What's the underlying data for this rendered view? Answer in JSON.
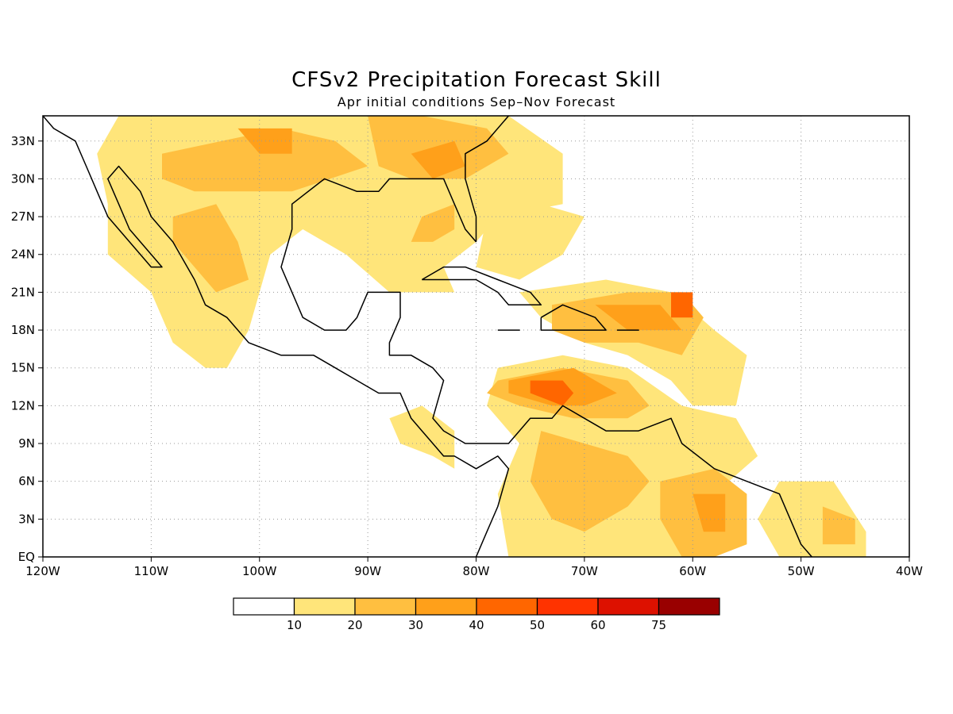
{
  "title": "CFSv2 Precipitation Forecast Skill",
  "subtitle": "Apr initial conditions  Sep–Nov Forecast",
  "map": {
    "lon_range": [
      -120,
      -40
    ],
    "lat_range": [
      0,
      35
    ],
    "lon_ticks": [
      {
        "value": -120,
        "label": "120W"
      },
      {
        "value": -110,
        "label": "110W"
      },
      {
        "value": -100,
        "label": "100W"
      },
      {
        "value": -90,
        "label": "90W"
      },
      {
        "value": -80,
        "label": "80W"
      },
      {
        "value": -70,
        "label": "70W"
      },
      {
        "value": -60,
        "label": "60W"
      },
      {
        "value": -50,
        "label": "50W"
      },
      {
        "value": -40,
        "label": "40W"
      }
    ],
    "lat_ticks": [
      {
        "value": 0,
        "label": "EQ"
      },
      {
        "value": 3,
        "label": "3N"
      },
      {
        "value": 6,
        "label": "6N"
      },
      {
        "value": 9,
        "label": "9N"
      },
      {
        "value": 12,
        "label": "12N"
      },
      {
        "value": 15,
        "label": "15N"
      },
      {
        "value": 18,
        "label": "18N"
      },
      {
        "value": 21,
        "label": "21N"
      },
      {
        "value": 24,
        "label": "24N"
      },
      {
        "value": 27,
        "label": "27N"
      },
      {
        "value": 30,
        "label": "30N"
      },
      {
        "value": 33,
        "label": "33N"
      }
    ],
    "grid": "dotted"
  },
  "legend": {
    "colors": [
      "#ffffff",
      "#ffe57a",
      "#ffbf40",
      "#ffa01a",
      "#ff6600",
      "#ff3300",
      "#dd1100",
      "#990000"
    ],
    "labels": [
      "10",
      "20",
      "30",
      "40",
      "50",
      "60",
      "75"
    ]
  },
  "skill_regions": [
    {
      "level": 1,
      "polygon": [
        [
          -113,
          35
        ],
        [
          -77,
          35
        ],
        [
          -72,
          32
        ],
        [
          -72,
          28
        ],
        [
          -78,
          27
        ],
        [
          -80,
          25
        ],
        [
          -83,
          23
        ],
        [
          -82,
          21
        ],
        [
          -88,
          21
        ],
        [
          -92,
          24
        ],
        [
          -96,
          26
        ],
        [
          -99,
          24
        ],
        [
          -100,
          21
        ],
        [
          -101,
          18
        ],
        [
          -103,
          15
        ],
        [
          -105,
          15
        ],
        [
          -108,
          17
        ],
        [
          -110,
          21
        ],
        [
          -114,
          24
        ],
        [
          -114,
          28
        ],
        [
          -115,
          32
        ]
      ]
    },
    {
      "level": 1,
      "polygon": [
        [
          -79,
          27
        ],
        [
          -74,
          28
        ],
        [
          -70,
          27
        ],
        [
          -72,
          24
        ],
        [
          -76,
          22
        ],
        [
          -80,
          23
        ]
      ]
    },
    {
      "level": 1,
      "polygon": [
        [
          -76,
          21
        ],
        [
          -68,
          22
        ],
        [
          -62,
          21
        ],
        [
          -58,
          18
        ],
        [
          -55,
          16
        ],
        [
          -56,
          12
        ],
        [
          -60,
          12
        ],
        [
          -62,
          14
        ],
        [
          -66,
          16
        ],
        [
          -70,
          17
        ],
        [
          -74,
          19
        ]
      ]
    },
    {
      "level": 1,
      "polygon": [
        [
          -78,
          15
        ],
        [
          -72,
          16
        ],
        [
          -66,
          15
        ],
        [
          -61,
          12
        ],
        [
          -56,
          11
        ],
        [
          -54,
          8
        ],
        [
          -58,
          5
        ],
        [
          -56,
          2
        ],
        [
          -58,
          0
        ],
        [
          -77,
          0
        ],
        [
          -78,
          5
        ],
        [
          -76,
          9
        ],
        [
          -79,
          12
        ]
      ]
    },
    {
      "level": 1,
      "polygon": [
        [
          -88,
          11
        ],
        [
          -85,
          12
        ],
        [
          -82,
          10
        ],
        [
          -82,
          7
        ],
        [
          -84,
          8
        ],
        [
          -87,
          9
        ]
      ]
    },
    {
      "level": 1,
      "polygon": [
        [
          -52,
          6
        ],
        [
          -47,
          6
        ],
        [
          -44,
          2
        ],
        [
          -44,
          0
        ],
        [
          -52,
          0
        ],
        [
          -54,
          3
        ]
      ]
    },
    {
      "level": 2,
      "polygon": [
        [
          -109,
          32
        ],
        [
          -98,
          34
        ],
        [
          -93,
          33
        ],
        [
          -90,
          31
        ],
        [
          -97,
          29
        ],
        [
          -102,
          29
        ],
        [
          -106,
          29
        ],
        [
          -109,
          30
        ]
      ]
    },
    {
      "level": 2,
      "polygon": [
        [
          -90,
          35
        ],
        [
          -85,
          35
        ],
        [
          -79,
          34
        ],
        [
          -77,
          32
        ],
        [
          -81,
          30
        ],
        [
          -86,
          30
        ],
        [
          -89,
          31
        ]
      ]
    },
    {
      "level": 2,
      "polygon": [
        [
          -108,
          27
        ],
        [
          -104,
          28
        ],
        [
          -102,
          25
        ],
        [
          -101,
          22
        ],
        [
          -104,
          21
        ],
        [
          -106,
          23
        ],
        [
          -108,
          25
        ]
      ]
    },
    {
      "level": 2,
      "polygon": [
        [
          -85,
          27
        ],
        [
          -82,
          28
        ],
        [
          -82,
          26
        ],
        [
          -84,
          25
        ],
        [
          -86,
          25
        ]
      ]
    },
    {
      "level": 2,
      "polygon": [
        [
          -73,
          20
        ],
        [
          -66,
          21
        ],
        [
          -61,
          21
        ],
        [
          -59,
          19
        ],
        [
          -61,
          16
        ],
        [
          -65,
          17
        ],
        [
          -70,
          17
        ],
        [
          -73,
          18
        ]
      ]
    },
    {
      "level": 2,
      "polygon": [
        [
          -78,
          14
        ],
        [
          -72,
          15
        ],
        [
          -66,
          14
        ],
        [
          -64,
          12
        ],
        [
          -66,
          11
        ],
        [
          -71,
          11
        ],
        [
          -76,
          12
        ],
        [
          -79,
          13
        ]
      ]
    },
    {
      "level": 2,
      "polygon": [
        [
          -74,
          10
        ],
        [
          -70,
          9
        ],
        [
          -66,
          8
        ],
        [
          -64,
          6
        ],
        [
          -66,
          4
        ],
        [
          -70,
          2
        ],
        [
          -73,
          3
        ],
        [
          -75,
          6
        ]
      ]
    },
    {
      "level": 2,
      "polygon": [
        [
          -63,
          6
        ],
        [
          -58,
          7
        ],
        [
          -55,
          5
        ],
        [
          -55,
          1
        ],
        [
          -58,
          0
        ],
        [
          -61,
          0
        ],
        [
          -63,
          3
        ]
      ]
    },
    {
      "level": 2,
      "polygon": [
        [
          -48,
          4
        ],
        [
          -45,
          3
        ],
        [
          -45,
          1
        ],
        [
          -48,
          1
        ]
      ]
    },
    {
      "level": 3,
      "polygon": [
        [
          -102,
          34
        ],
        [
          -97,
          34
        ],
        [
          -97,
          32
        ],
        [
          -100,
          32
        ]
      ]
    },
    {
      "level": 3,
      "polygon": [
        [
          -86,
          32
        ],
        [
          -82,
          33
        ],
        [
          -81,
          31
        ],
        [
          -84,
          30
        ]
      ]
    },
    {
      "level": 3,
      "polygon": [
        [
          -77,
          14
        ],
        [
          -71,
          15
        ],
        [
          -67,
          13
        ],
        [
          -70,
          12
        ],
        [
          -73,
          12
        ],
        [
          -77,
          13
        ]
      ]
    },
    {
      "level": 3,
      "polygon": [
        [
          -69,
          20
        ],
        [
          -63,
          20
        ],
        [
          -61,
          18
        ],
        [
          -66,
          18
        ]
      ]
    },
    {
      "level": 3,
      "polygon": [
        [
          -60,
          5
        ],
        [
          -57,
          5
        ],
        [
          -57,
          2
        ],
        [
          -59,
          2
        ]
      ]
    },
    {
      "level": 4,
      "polygon": [
        [
          -62,
          21
        ],
        [
          -60,
          21
        ],
        [
          -60,
          19
        ],
        [
          -62,
          19
        ]
      ]
    },
    {
      "level": 4,
      "polygon": [
        [
          -75,
          14
        ],
        [
          -72,
          14
        ],
        [
          -71,
          13
        ],
        [
          -72,
          12
        ],
        [
          -75,
          13
        ]
      ]
    }
  ],
  "coastlines": [
    {
      "name": "north-america-coast",
      "points": [
        [
          -120,
          35
        ],
        [
          -119,
          34
        ],
        [
          -117,
          33
        ],
        [
          -116,
          31
        ],
        [
          -115,
          29
        ],
        [
          -114,
          27
        ],
        [
          -112,
          25
        ],
        [
          -110,
          23
        ],
        [
          -109,
          23
        ],
        [
          -110,
          24
        ],
        [
          -112,
          26
        ],
        [
          -113,
          28
        ],
        [
          -114,
          30
        ],
        [
          -113,
          31
        ],
        [
          -111,
          29
        ],
        [
          -110,
          27
        ],
        [
          -108,
          25
        ],
        [
          -106,
          22
        ],
        [
          -105,
          20
        ],
        [
          -103,
          19
        ],
        [
          -101,
          17
        ],
        [
          -98,
          16
        ],
        [
          -95,
          16
        ],
        [
          -93,
          15
        ],
        [
          -91,
          14
        ],
        [
          -89,
          13
        ],
        [
          -87,
          13
        ],
        [
          -86,
          11
        ],
        [
          -85,
          10
        ],
        [
          -84,
          9
        ],
        [
          -83,
          8
        ],
        [
          -82,
          8
        ],
        [
          -80,
          7
        ],
        [
          -78,
          8
        ],
        [
          -77,
          7
        ],
        [
          -78,
          4
        ],
        [
          -79,
          2
        ],
        [
          -80,
          0
        ]
      ]
    },
    {
      "name": "gulf-coast",
      "points": [
        [
          -80,
          25
        ],
        [
          -81,
          26
        ],
        [
          -82,
          28
        ],
        [
          -83,
          30
        ],
        [
          -85,
          30
        ],
        [
          -88,
          30
        ],
        [
          -89,
          29
        ],
        [
          -91,
          29
        ],
        [
          -94,
          30
        ],
        [
          -97,
          28
        ],
        [
          -97,
          26
        ],
        [
          -98,
          23
        ],
        [
          -97,
          21
        ],
        [
          -96,
          19
        ],
        [
          -94,
          18
        ],
        [
          -92,
          18
        ],
        [
          -91,
          19
        ],
        [
          -90,
          21
        ],
        [
          -87,
          21
        ],
        [
          -87,
          19
        ],
        [
          -88,
          17
        ],
        [
          -88,
          16
        ],
        [
          -86,
          16
        ],
        [
          -84,
          15
        ],
        [
          -83,
          14
        ],
        [
          -84,
          11
        ],
        [
          -83,
          10
        ],
        [
          -81,
          9
        ],
        [
          -79,
          9
        ],
        [
          -77,
          9
        ],
        [
          -76,
          10
        ],
        [
          -75,
          11
        ],
        [
          -73,
          11
        ],
        [
          -72,
          12
        ],
        [
          -70,
          11
        ],
        [
          -68,
          10
        ],
        [
          -65,
          10
        ],
        [
          -62,
          11
        ],
        [
          -61,
          9
        ],
        [
          -58,
          7
        ],
        [
          -55,
          6
        ],
        [
          -52,
          5
        ],
        [
          -51,
          3
        ],
        [
          -50,
          1
        ],
        [
          -49,
          0
        ]
      ]
    },
    {
      "name": "atlantic-coast",
      "points": [
        [
          -80,
          25
        ],
        [
          -80,
          27
        ],
        [
          -81,
          30
        ],
        [
          -81,
          32
        ],
        [
          -79,
          33
        ],
        [
          -77,
          35
        ]
      ]
    },
    {
      "name": "cuba",
      "points": [
        [
          -85,
          22
        ],
        [
          -83,
          23
        ],
        [
          -81,
          23
        ],
        [
          -78,
          22
        ],
        [
          -75,
          21
        ],
        [
          -74,
          20
        ],
        [
          -77,
          20
        ],
        [
          -78,
          21
        ],
        [
          -80,
          22
        ],
        [
          -83,
          22
        ],
        [
          -85,
          22
        ]
      ]
    },
    {
      "name": "hispaniola",
      "points": [
        [
          -74,
          19
        ],
        [
          -72,
          20
        ],
        [
          -69,
          19
        ],
        [
          -68,
          18
        ],
        [
          -71,
          18
        ],
        [
          -74,
          18
        ],
        [
          -74,
          19
        ]
      ]
    },
    {
      "name": "jamaica",
      "points": [
        [
          -78,
          18
        ],
        [
          -77,
          18
        ],
        [
          -76,
          18
        ],
        [
          -77,
          18
        ],
        [
          -78,
          18
        ]
      ]
    },
    {
      "name": "puerto-rico",
      "points": [
        [
          -67,
          18
        ],
        [
          -65,
          18
        ],
        [
          -65,
          18
        ],
        [
          -67,
          18
        ]
      ]
    }
  ]
}
